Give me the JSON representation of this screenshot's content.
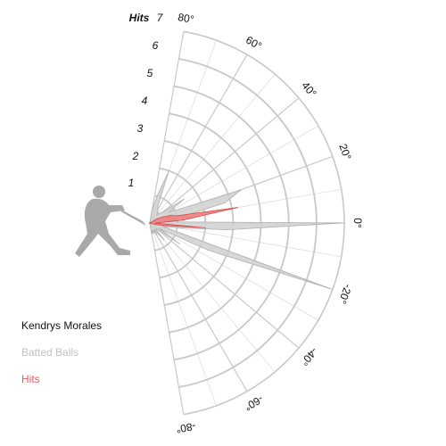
{
  "colors": {
    "grid": "#c8c8c8",
    "minor_grid": "#dedede",
    "batted_fill": "#d3d3d3",
    "batted_stroke": "#b0b0b0",
    "hits_fill": "#f08080",
    "hits_stroke": "#d94848",
    "batter": "#a9a9a9",
    "legend_name": "#111111",
    "legend_batted": "#c2c2c2",
    "legend_hits": "#e85a5a"
  },
  "legend": {
    "player": "Kendrys Morales",
    "batted": "Batted Balls",
    "hits": "Hits"
  },
  "chart_data": {
    "type": "radial",
    "radial_axis": {
      "title": "Hits",
      "ticks": [
        1,
        2,
        3,
        4,
        5,
        6,
        7
      ],
      "range": [
        0,
        7
      ]
    },
    "angle_axis": {
      "range": [
        -80,
        80
      ],
      "ticks": [
        80,
        60,
        40,
        20,
        0,
        -20,
        -40,
        -60,
        -80
      ],
      "tick_labels": [
        "80°",
        "60°",
        "40°",
        "20°",
        "0°",
        "-20°",
        "-40°",
        "-60°",
        "-80°"
      ]
    },
    "series": [
      {
        "name": "Batted Balls",
        "angles": [
          80,
          75,
          70,
          65,
          60,
          55,
          50,
          45,
          40,
          35,
          30,
          25,
          20,
          15,
          10,
          5,
          0,
          -5,
          -10,
          -15,
          -20,
          -25,
          -30,
          -35,
          -40,
          -45,
          -50,
          -55,
          -60,
          -65,
          -70,
          -75,
          -80
        ],
        "values": [
          0.5,
          1.0,
          2.0,
          0.7,
          0.6,
          0.5,
          0.4,
          0.5,
          0.6,
          1.5,
          0.8,
          1.2,
          3.5,
          2.8,
          1.0,
          0.5,
          6.9,
          2.8,
          1.0,
          0.5,
          6.9,
          2.3,
          0.4,
          1.3,
          0.3,
          0.3,
          0.8,
          0.3,
          0.5,
          0.3,
          0.4,
          0.3,
          0.4
        ]
      },
      {
        "name": "Hits",
        "angles": [
          80,
          75,
          70,
          65,
          60,
          55,
          50,
          45,
          40,
          35,
          30,
          25,
          20,
          15,
          10,
          5,
          0,
          -5,
          -10,
          -15,
          -20,
          -25,
          -30,
          -35,
          -40,
          -45,
          -50,
          -55,
          -60,
          -65,
          -70,
          -75,
          -80
        ],
        "values": [
          0,
          0,
          0,
          0,
          0,
          0,
          0,
          0,
          0,
          0,
          0.3,
          0.5,
          0.8,
          1.0,
          3.2,
          1.2,
          0.2,
          2.0,
          0.5,
          0.2,
          0,
          0,
          0,
          0,
          0,
          0,
          0,
          0,
          0,
          0,
          0,
          0,
          0
        ]
      }
    ],
    "grid": true
  }
}
